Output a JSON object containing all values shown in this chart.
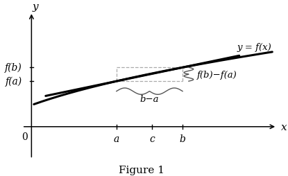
{
  "title": "Figure 1",
  "curve_color": "#000000",
  "secant_color": "#000000",
  "dashed_color": "#aaaaaa",
  "bg_color": "#ffffff",
  "x_a": 1.8,
  "x_b": 3.2,
  "x_c": 2.55,
  "x_min": -0.2,
  "x_max": 5.2,
  "y_min": -0.9,
  "y_max": 3.2,
  "curve_label": "y = f(x)",
  "brace_h_label": "b−a",
  "brace_v_label": "f(b)−f(a)",
  "label_a": "a",
  "label_b": "b",
  "label_c": "c",
  "label_0": "0",
  "label_fa": "f(a)",
  "label_fb": "f(b)",
  "label_x": "x",
  "label_y": "y",
  "font_family": "DejaVu Serif"
}
